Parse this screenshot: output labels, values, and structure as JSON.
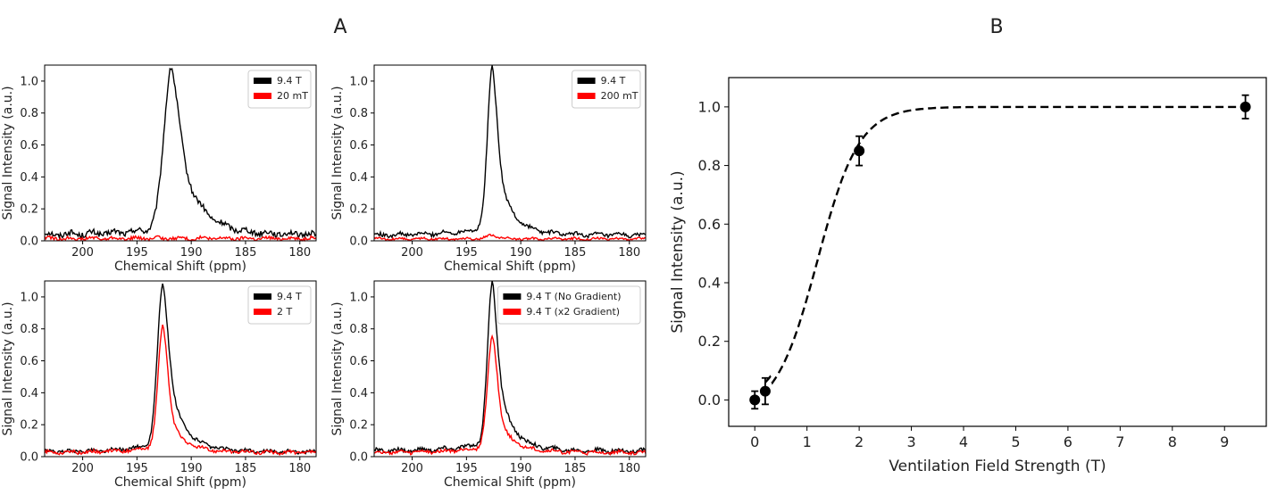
{
  "panel_labels": {
    "A": "A",
    "B": "B"
  },
  "colors": {
    "reference": "#000000",
    "comparison": "#ff0000",
    "axis": "#000000"
  },
  "chart_data": [
    {
      "id": "a1",
      "type": "line",
      "xlabel": "Chemical Shift (ppm)",
      "ylabel": "Signal Intensity (a.u.)",
      "xlim": [
        203.5,
        178.5
      ],
      "ylim": [
        0,
        1.1
      ],
      "xticks": [
        200,
        195,
        190,
        185,
        180
      ],
      "yticks": [
        0.0,
        0.2,
        0.4,
        0.6,
        0.8,
        1.0
      ],
      "legend": "top-right",
      "series": [
        {
          "name": "9.4 T",
          "color": "#000000",
          "peak": {
            "center": 191.8,
            "height": 1.0,
            "width": 0.7,
            "shoulder": 0.68
          },
          "baseline": 0.04,
          "noise": 0.018
        },
        {
          "name": "20 mT",
          "color": "#ff0000",
          "peak": {
            "center": 191.8,
            "height": 0.0,
            "width": 0.7,
            "shoulder": 0.0
          },
          "baseline": 0.015,
          "noise": 0.01
        }
      ]
    },
    {
      "id": "a2",
      "type": "line",
      "xlabel": "Chemical Shift (ppm)",
      "ylabel": "Signal Intensity (a.u.)",
      "xlim": [
        203.5,
        178.5
      ],
      "ylim": [
        0,
        1.1
      ],
      "xticks": [
        200,
        195,
        190,
        185,
        180
      ],
      "yticks": [
        0.0,
        0.2,
        0.4,
        0.6,
        0.8,
        1.0
      ],
      "legend": "top-right",
      "series": [
        {
          "name": "9.4 T",
          "color": "#000000",
          "peak": {
            "center": 192.6,
            "height": 1.0,
            "width": 0.45,
            "shoulder": 0.55
          },
          "baseline": 0.035,
          "noise": 0.012
        },
        {
          "name": "200 mT",
          "color": "#ff0000",
          "peak": {
            "center": 192.6,
            "height": 0.02,
            "width": 0.6,
            "shoulder": 0.0
          },
          "baseline": 0.012,
          "noise": 0.007
        }
      ]
    },
    {
      "id": "a3",
      "type": "line",
      "xlabel": "Chemical Shift (ppm)",
      "ylabel": "Signal Intensity (a.u.)",
      "xlim": [
        203.5,
        178.5
      ],
      "ylim": [
        0,
        1.1
      ],
      "xticks": [
        200,
        195,
        190,
        185,
        180
      ],
      "yticks": [
        0.0,
        0.2,
        0.4,
        0.6,
        0.8,
        1.0
      ],
      "legend": "top-right",
      "series": [
        {
          "name": "9.4 T",
          "color": "#000000",
          "peak": {
            "center": 192.6,
            "height": 1.0,
            "width": 0.5,
            "shoulder": 0.6
          },
          "baseline": 0.03,
          "noise": 0.01
        },
        {
          "name": "2 T",
          "color": "#ff0000",
          "peak": {
            "center": 192.6,
            "height": 0.75,
            "width": 0.45,
            "shoulder": 0.4
          },
          "baseline": 0.025,
          "noise": 0.01
        }
      ]
    },
    {
      "id": "a4",
      "type": "line",
      "xlabel": "Chemical Shift (ppm)",
      "ylabel": "Signal Intensity (a.u.)",
      "xlim": [
        203.5,
        178.5
      ],
      "ylim": [
        0,
        1.1
      ],
      "xticks": [
        200,
        195,
        190,
        185,
        180
      ],
      "yticks": [
        0.0,
        0.2,
        0.4,
        0.6,
        0.8,
        1.0
      ],
      "legend": "top-right",
      "series": [
        {
          "name": "9.4 T (No Gradient)",
          "color": "#000000",
          "peak": {
            "center": 192.6,
            "height": 1.0,
            "width": 0.45,
            "shoulder": 0.6
          },
          "baseline": 0.035,
          "noise": 0.012
        },
        {
          "name": "9.4 T (x2 Gradient)",
          "color": "#ff0000",
          "peak": {
            "center": 192.6,
            "height": 0.69,
            "width": 0.45,
            "shoulder": 0.42
          },
          "baseline": 0.025,
          "noise": 0.01
        }
      ]
    },
    {
      "id": "b",
      "type": "scatter",
      "xlabel": "Ventilation Field Strength (T)",
      "ylabel": "Signal Intensity (a.u.)",
      "xlim": [
        -0.5,
        9.8
      ],
      "ylim": [
        -0.09,
        1.1
      ],
      "xticks": [
        0,
        1,
        2,
        3,
        4,
        5,
        6,
        7,
        8,
        9
      ],
      "yticks": [
        0.0,
        0.2,
        0.4,
        0.6,
        0.8,
        1.0
      ],
      "points": [
        {
          "x": 0.0,
          "y": 0.0,
          "err": 0.03
        },
        {
          "x": 0.2,
          "y": 0.03,
          "err": 0.045
        },
        {
          "x": 2.0,
          "y": 0.85,
          "err": 0.05
        },
        {
          "x": 9.4,
          "y": 1.0,
          "err": 0.04
        }
      ],
      "fit": {
        "style": "dashed",
        "x_range": [
          0.2,
          9.4
        ],
        "model": "sigmoid",
        "k": 2.5,
        "x0": 1.2
      }
    }
  ]
}
